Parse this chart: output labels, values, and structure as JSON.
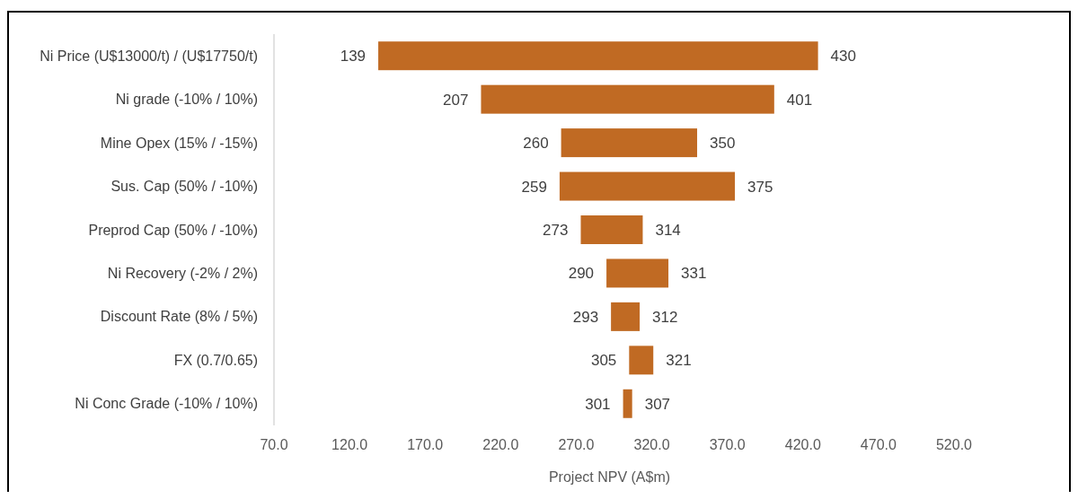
{
  "chart_data": {
    "type": "bar",
    "orientation": "horizontal",
    "xlabel": "Project NPV (A$m)",
    "categories": [
      "Ni Price (U$13000/t) / (U$17750/t)",
      "Ni grade (-10% / 10%)",
      "Mine Opex (15% / -15%)",
      "Sus. Cap (50% / -10%)",
      "Preprod Cap (50% / -10%)",
      "Ni Recovery (-2% / 2%)",
      "Discount Rate (8% / 5%)",
      "FX (0.7/0.65)",
      "Ni Conc Grade (-10% / 10%)"
    ],
    "base": [
      139,
      207,
      260,
      259,
      273,
      290,
      293,
      305,
      301
    ],
    "values": [
      291,
      194,
      90,
      116,
      41,
      41,
      19,
      16,
      6
    ],
    "color": "#c06a23",
    "xlim": [
      70,
      520
    ],
    "xticks": [
      {
        "value": 70,
        "label": "70.0"
      },
      {
        "value": 120,
        "label": "120.0"
      },
      {
        "value": 170,
        "label": "170.0"
      },
      {
        "value": 220,
        "label": "220.0"
      },
      {
        "value": 270,
        "label": "270.0"
      },
      {
        "value": 320,
        "label": "320.0"
      },
      {
        "value": 370,
        "label": "370.0"
      },
      {
        "value": 420,
        "label": "420.0"
      },
      {
        "value": 470,
        "label": "470.0"
      },
      {
        "value": 520,
        "label": "520.0"
      }
    ],
    "annotations": [
      {
        "text": "139",
        "x": 139,
        "y": "Ni Price (U$13000/t) / (U$17750/t)"
      },
      {
        "text": "430",
        "x": 430,
        "y": "Ni Price (U$13000/t) / (U$17750/t)"
      },
      {
        "text": "207",
        "x": 207,
        "y": "Ni grade (-10% / 10%)"
      },
      {
        "text": "401",
        "x": 401,
        "y": "Ni grade (-10% / 10%)"
      },
      {
        "text": "260",
        "x": 260,
        "y": "Mine Opex (15% / -15%)"
      },
      {
        "text": "350",
        "x": 350,
        "y": "Mine Opex (15% / -15%)"
      },
      {
        "text": "259",
        "x": 259,
        "y": "Sus. Cap (50% / -10%)"
      },
      {
        "text": "375",
        "x": 375,
        "y": "Sus. Cap (50% / -10%)"
      },
      {
        "text": "273",
        "x": 273,
        "y": "Preprod Cap (50% / -10%)"
      },
      {
        "text": "314",
        "x": 314,
        "y": "Preprod Cap (50% / -10%)"
      },
      {
        "text": "290",
        "x": 290,
        "y": "Ni Recovery (-2% / 2%)"
      },
      {
        "text": "331",
        "x": 331,
        "y": "Ni Recovery (-2% / 2%)"
      },
      {
        "text": "293",
        "x": 293,
        "y": "Discount Rate (8% / 5%)"
      },
      {
        "text": "312",
        "x": 312,
        "y": "Discount Rate (8% / 5%)"
      },
      {
        "text": "305",
        "x": 305,
        "y": "FX (0.7/0.65)"
      },
      {
        "text": "321",
        "x": 321,
        "y": "FX (0.7/0.65)"
      },
      {
        "text": "301",
        "x": 301,
        "y": "Ni Conc Grade (-10% / 10%)"
      },
      {
        "text": "307",
        "x": 307,
        "y": "Ni Conc Grade (-10% / 10%)"
      }
    ],
    "grid": false
  }
}
